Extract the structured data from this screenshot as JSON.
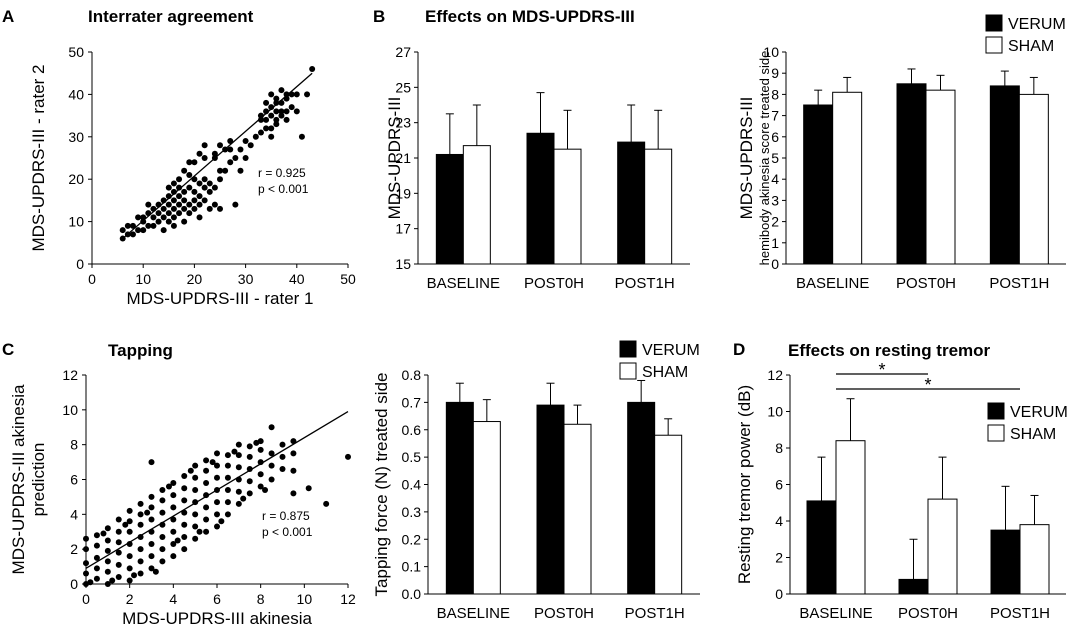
{
  "panels": {
    "A": {
      "letter": "A",
      "title": "Interrater agreement"
    },
    "B": {
      "letter": "B",
      "title": "Effects on MDS-UPDRS-III"
    },
    "C": {
      "letter": "C",
      "title": "Tapping"
    },
    "D": {
      "letter": "D",
      "title": "Effects on resting tremor"
    }
  },
  "chart_data": [
    {
      "id": "A",
      "type": "scatter",
      "title": "Interrater agreement",
      "xlabel": "MDS-UPDRS-III - rater 1",
      "ylabel": "MDS-UPDRS-III - rater 2",
      "xlim": [
        0,
        50
      ],
      "ylim": [
        0,
        50
      ],
      "xticks": [
        0,
        10,
        20,
        30,
        40,
        50
      ],
      "yticks": [
        0,
        10,
        20,
        30,
        40,
        50
      ],
      "annotation": [
        "r = 0.925",
        "p < 0.001"
      ],
      "fit": [
        [
          6,
          6
        ],
        [
          43,
          45
        ]
      ],
      "points": [
        [
          6,
          6
        ],
        [
          6,
          8
        ],
        [
          7,
          7
        ],
        [
          8,
          7
        ],
        [
          8,
          9
        ],
        [
          9,
          8
        ],
        [
          10,
          10
        ],
        [
          10,
          11
        ],
        [
          11,
          9
        ],
        [
          11,
          12
        ],
        [
          12,
          11
        ],
        [
          12,
          13
        ],
        [
          12,
          9
        ],
        [
          13,
          10
        ],
        [
          13,
          12
        ],
        [
          14,
          8
        ],
        [
          14,
          11
        ],
        [
          14,
          15
        ],
        [
          14,
          13
        ],
        [
          15,
          10
        ],
        [
          15,
          12
        ],
        [
          15,
          14
        ],
        [
          15,
          16
        ],
        [
          15,
          18
        ],
        [
          16,
          11
        ],
        [
          16,
          13
        ],
        [
          16,
          15
        ],
        [
          16,
          17
        ],
        [
          16,
          19
        ],
        [
          16,
          9
        ],
        [
          17,
          12
        ],
        [
          17,
          14
        ],
        [
          17,
          16
        ],
        [
          17,
          20
        ],
        [
          18,
          10
        ],
        [
          18,
          13
        ],
        [
          18,
          15
        ],
        [
          18,
          17
        ],
        [
          18,
          22
        ],
        [
          19,
          12
        ],
        [
          19,
          14
        ],
        [
          19,
          18
        ],
        [
          19,
          21
        ],
        [
          20,
          13
        ],
        [
          20,
          15
        ],
        [
          20,
          17
        ],
        [
          20,
          24
        ],
        [
          21,
          14
        ],
        [
          21,
          16
        ],
        [
          21,
          19
        ],
        [
          21,
          26
        ],
        [
          22,
          15
        ],
        [
          22,
          18
        ],
        [
          22,
          20
        ],
        [
          22,
          28
        ],
        [
          23,
          17
        ],
        [
          23,
          19
        ],
        [
          24,
          14
        ],
        [
          24,
          18
        ],
        [
          24,
          25
        ],
        [
          25,
          20
        ],
        [
          25,
          22
        ],
        [
          25,
          28
        ],
        [
          26,
          22
        ],
        [
          26,
          27
        ],
        [
          27,
          24
        ],
        [
          27,
          29
        ],
        [
          28,
          25
        ],
        [
          29,
          27
        ],
        [
          30,
          25
        ],
        [
          30,
          29
        ],
        [
          31,
          28
        ],
        [
          32,
          30
        ],
        [
          33,
          31
        ],
        [
          33,
          35
        ],
        [
          34,
          34
        ],
        [
          34,
          36
        ],
        [
          34,
          38
        ],
        [
          35,
          30
        ],
        [
          35,
          32
        ],
        [
          35,
          35
        ],
        [
          35,
          37
        ],
        [
          35,
          40
        ],
        [
          36,
          33
        ],
        [
          36,
          36
        ],
        [
          36,
          38
        ],
        [
          36,
          34
        ],
        [
          37,
          36
        ],
        [
          37,
          38
        ],
        [
          37,
          41
        ],
        [
          38,
          34
        ],
        [
          38,
          36
        ],
        [
          38,
          39
        ],
        [
          38,
          40
        ],
        [
          39,
          37
        ],
        [
          39,
          40
        ],
        [
          40,
          36
        ],
        [
          40,
          40
        ],
        [
          41,
          30
        ],
        [
          42,
          40
        ],
        [
          43,
          46
        ],
        [
          37,
          35
        ],
        [
          36,
          39
        ],
        [
          34,
          32
        ],
        [
          33,
          34
        ],
        [
          21,
          11
        ],
        [
          23,
          13
        ],
        [
          25,
          13
        ],
        [
          28,
          14
        ],
        [
          19,
          24
        ],
        [
          22,
          25
        ],
        [
          27,
          27
        ],
        [
          29,
          22
        ],
        [
          24,
          26
        ],
        [
          20,
          20
        ],
        [
          17,
          18
        ],
        [
          13,
          14
        ],
        [
          11,
          14
        ],
        [
          9,
          11
        ],
        [
          7,
          9
        ],
        [
          10,
          8
        ]
      ]
    },
    {
      "id": "B1",
      "type": "bar",
      "ylabel": "MDS-UPDRS-III",
      "categories": [
        "BASELINE",
        "POST0H",
        "POST1H"
      ],
      "ylim": [
        15,
        27
      ],
      "yticks": [
        15,
        17,
        19,
        21,
        23,
        25,
        27
      ],
      "series": [
        {
          "name": "VERUM",
          "color": "#000000",
          "values": [
            21.2,
            22.4,
            21.9
          ],
          "errors": [
            2.3,
            2.3,
            2.1
          ]
        },
        {
          "name": "SHAM",
          "color": "#ffffff",
          "values": [
            21.7,
            21.5,
            21.5
          ],
          "errors": [
            2.3,
            2.2,
            2.2
          ]
        }
      ]
    },
    {
      "id": "B2",
      "type": "bar",
      "ylabel": "MDS-UPDRS-III",
      "ylabel2": "hemibody akinesia score treated side",
      "categories": [
        "BASELINE",
        "POST0H",
        "POST1H"
      ],
      "ylim": [
        0,
        10
      ],
      "yticks": [
        0,
        1,
        2,
        3,
        4,
        5,
        6,
        7,
        8,
        9,
        10
      ],
      "legend": [
        "VERUM",
        "SHAM"
      ],
      "series": [
        {
          "name": "VERUM",
          "color": "#000000",
          "values": [
            7.5,
            8.5,
            8.4
          ],
          "errors": [
            0.7,
            0.7,
            0.7
          ]
        },
        {
          "name": "SHAM",
          "color": "#ffffff",
          "values": [
            8.1,
            8.2,
            8.0
          ],
          "errors": [
            0.7,
            0.7,
            0.8
          ]
        }
      ]
    },
    {
      "id": "C",
      "type": "scatter",
      "title": "Tapping",
      "xlabel": "MDS-UPDRS-III akinesia",
      "ylabel": "MDS-UPDRS-III akinesia",
      "ylabel2": "prediction",
      "xlim": [
        0,
        12
      ],
      "ylim": [
        0,
        12
      ],
      "xticks": [
        0,
        2,
        4,
        6,
        8,
        10,
        12
      ],
      "yticks": [
        0,
        2,
        4,
        6,
        8,
        10,
        12
      ],
      "annotation": [
        "r = 0.875",
        "p < 0.001"
      ],
      "fit": [
        [
          0,
          0.9
        ],
        [
          12,
          9.9
        ]
      ],
      "points": [
        [
          0,
          0
        ],
        [
          0,
          0.6
        ],
        [
          0,
          1.2
        ],
        [
          0,
          2
        ],
        [
          0,
          2.6
        ],
        [
          0.5,
          0.3
        ],
        [
          0.5,
          0.9
        ],
        [
          0.5,
          1.5
        ],
        [
          0.5,
          2.2
        ],
        [
          0.5,
          2.8
        ],
        [
          1,
          0
        ],
        [
          1,
          0.7
        ],
        [
          1,
          1.3
        ],
        [
          1,
          1.9
        ],
        [
          1,
          2.5
        ],
        [
          1,
          3.2
        ],
        [
          1.5,
          0.4
        ],
        [
          1.5,
          1.1
        ],
        [
          1.5,
          1.8
        ],
        [
          1.5,
          2.4
        ],
        [
          1.5,
          3
        ],
        [
          1.5,
          3.7
        ],
        [
          2,
          0.2
        ],
        [
          2,
          0.9
        ],
        [
          2,
          1.6
        ],
        [
          2,
          2.3
        ],
        [
          2,
          3
        ],
        [
          2,
          3.6
        ],
        [
          2,
          4.2
        ],
        [
          2.5,
          0.6
        ],
        [
          2.5,
          1.3
        ],
        [
          2.5,
          2
        ],
        [
          2.5,
          2.7
        ],
        [
          2.5,
          3.4
        ],
        [
          2.5,
          4
        ],
        [
          2.5,
          4.6
        ],
        [
          3,
          0.9
        ],
        [
          3,
          1.6
        ],
        [
          3,
          2.3
        ],
        [
          3,
          3
        ],
        [
          3,
          3.7
        ],
        [
          3,
          4.4
        ],
        [
          3,
          5
        ],
        [
          3,
          7
        ],
        [
          3.5,
          1.3
        ],
        [
          3.5,
          2
        ],
        [
          3.5,
          2.7
        ],
        [
          3.5,
          3.4
        ],
        [
          3.5,
          4.1
        ],
        [
          3.5,
          4.8
        ],
        [
          3.5,
          5.4
        ],
        [
          4,
          1.6
        ],
        [
          4,
          2.3
        ],
        [
          4,
          3
        ],
        [
          4,
          3.7
        ],
        [
          4,
          4.4
        ],
        [
          4,
          5.1
        ],
        [
          4,
          5.8
        ],
        [
          4.5,
          2
        ],
        [
          4.5,
          2.7
        ],
        [
          4.5,
          3.4
        ],
        [
          4.5,
          4.1
        ],
        [
          4.5,
          4.8
        ],
        [
          4.5,
          5.5
        ],
        [
          4.5,
          6.2
        ],
        [
          5,
          2.6
        ],
        [
          5,
          3.3
        ],
        [
          5,
          4
        ],
        [
          5,
          4.7
        ],
        [
          5,
          5.4
        ],
        [
          5,
          6.1
        ],
        [
          5,
          6.8
        ],
        [
          5.5,
          3
        ],
        [
          5.5,
          3.7
        ],
        [
          5.5,
          4.4
        ],
        [
          5.5,
          5.1
        ],
        [
          5.5,
          5.8
        ],
        [
          5.5,
          6.5
        ],
        [
          5.5,
          7.1
        ],
        [
          6,
          3.3
        ],
        [
          6,
          4
        ],
        [
          6,
          4.7
        ],
        [
          6,
          5.4
        ],
        [
          6,
          6.1
        ],
        [
          6,
          6.8
        ],
        [
          6,
          7.5
        ],
        [
          6.5,
          4
        ],
        [
          6.5,
          4.7
        ],
        [
          6.5,
          5.4
        ],
        [
          6.5,
          6.1
        ],
        [
          6.5,
          6.8
        ],
        [
          6.5,
          7.4
        ],
        [
          7,
          4.6
        ],
        [
          7,
          5.3
        ],
        [
          7,
          6
        ],
        [
          7,
          6.7
        ],
        [
          7,
          7.4
        ],
        [
          7,
          8
        ],
        [
          7.5,
          5.2
        ],
        [
          7.5,
          5.9
        ],
        [
          7.5,
          6.6
        ],
        [
          7.5,
          7.3
        ],
        [
          7.5,
          7.9
        ],
        [
          8,
          5.6
        ],
        [
          8,
          6.3
        ],
        [
          8,
          7
        ],
        [
          8,
          7.7
        ],
        [
          8,
          8.2
        ],
        [
          8.5,
          6
        ],
        [
          8.5,
          6.8
        ],
        [
          8.5,
          7.5
        ],
        [
          8.5,
          9
        ],
        [
          9,
          6.6
        ],
        [
          9,
          7.3
        ],
        [
          9,
          8
        ],
        [
          9.5,
          6.5
        ],
        [
          9.5,
          7.5
        ],
        [
          9.5,
          8.2
        ],
        [
          12,
          7.3
        ],
        [
          11,
          4.6
        ],
        [
          9.5,
          5.2
        ],
        [
          10.2,
          5.5
        ],
        [
          0.2,
          0.1
        ],
        [
          0.8,
          2.9
        ],
        [
          1.2,
          0.2
        ],
        [
          1.8,
          3.4
        ],
        [
          2.2,
          0.5
        ],
        [
          2.8,
          4.1
        ],
        [
          3.2,
          0.7
        ],
        [
          3.8,
          5.6
        ],
        [
          4.2,
          2.5
        ],
        [
          4.8,
          6.5
        ],
        [
          5.2,
          3
        ],
        [
          5.8,
          7
        ],
        [
          6.2,
          3.6
        ],
        [
          6.8,
          7.6
        ],
        [
          7.2,
          4.9
        ],
        [
          7.8,
          8.1
        ],
        [
          8.2,
          5.4
        ]
      ]
    },
    {
      "id": "C2",
      "type": "bar",
      "ylabel": "Tapping force (N) treated side",
      "categories": [
        "BASELINE",
        "POST0H",
        "POST1H"
      ],
      "ylim": [
        0,
        0.8
      ],
      "yticks": [
        "0.0",
        "0.1",
        "0.2",
        "0.3",
        "0.4",
        "0.5",
        "0.6",
        "0.7",
        "0.8"
      ],
      "legend": [
        "VERUM",
        "SHAM"
      ],
      "series": [
        {
          "name": "VERUM",
          "color": "#000000",
          "values": [
            0.7,
            0.69,
            0.7
          ],
          "errors": [
            0.07,
            0.08,
            0.08
          ]
        },
        {
          "name": "SHAM",
          "color": "#ffffff",
          "values": [
            0.63,
            0.62,
            0.58
          ],
          "errors": [
            0.08,
            0.07,
            0.06
          ]
        }
      ]
    },
    {
      "id": "D",
      "type": "bar",
      "title": "Effects on resting tremor",
      "ylabel": "Resting tremor power (dB)",
      "categories": [
        "BASELINE",
        "POST0H",
        "POST1H"
      ],
      "ylim": [
        0,
        12
      ],
      "yticks": [
        0,
        2,
        4,
        6,
        8,
        10,
        12
      ],
      "legend": [
        "VERUM",
        "SHAM"
      ],
      "significance": [
        {
          "from": "BASELINE",
          "to": "POST0H",
          "label": "*"
        },
        {
          "from": "BASELINE",
          "to": "POST1H",
          "label": "*"
        }
      ],
      "series": [
        {
          "name": "VERUM",
          "color": "#000000",
          "values": [
            5.1,
            0.8,
            3.5
          ],
          "errors": [
            2.4,
            2.2,
            2.4
          ]
        },
        {
          "name": "SHAM",
          "color": "#ffffff",
          "values": [
            8.4,
            5.2,
            3.8
          ],
          "errors": [
            2.3,
            2.3,
            1.6
          ]
        }
      ]
    }
  ]
}
